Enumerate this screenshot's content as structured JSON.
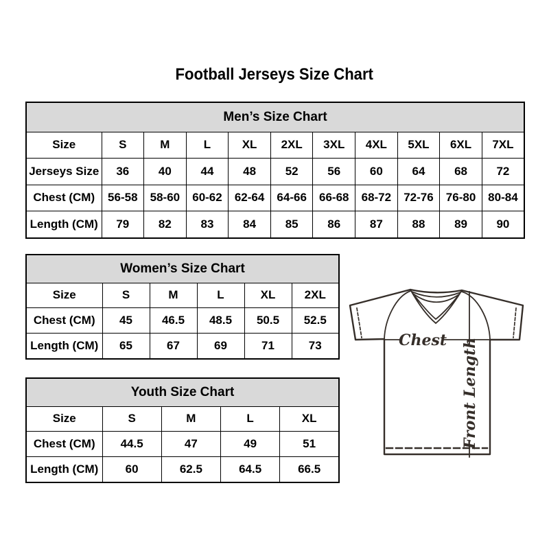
{
  "page": {
    "title": "Football Jerseys Size Chart"
  },
  "tables": {
    "men": {
      "title": "Men’s Size Chart",
      "rows": [
        [
          "Size",
          "S",
          "M",
          "L",
          "XL",
          "2XL",
          "3XL",
          "4XL",
          "5XL",
          "6XL",
          "7XL"
        ],
        [
          "Jerseys Size",
          "36",
          "40",
          "44",
          "48",
          "52",
          "56",
          "60",
          "64",
          "68",
          "72"
        ],
        [
          "Chest (CM)",
          "56-58",
          "58-60",
          "60-62",
          "62-64",
          "64-66",
          "66-68",
          "68-72",
          "72-76",
          "76-80",
          "80-84"
        ],
        [
          "Length (CM)",
          "79",
          "82",
          "83",
          "84",
          "85",
          "86",
          "87",
          "88",
          "89",
          "90"
        ]
      ]
    },
    "women": {
      "title": "Women’s Size Chart",
      "rows": [
        [
          "Size",
          "S",
          "M",
          "L",
          "XL",
          "2XL"
        ],
        [
          "Chest (CM)",
          "45",
          "46.5",
          "48.5",
          "50.5",
          "52.5"
        ],
        [
          "Length (CM)",
          "65",
          "67",
          "69",
          "71",
          "73"
        ]
      ]
    },
    "youth": {
      "title": "Youth Size Chart",
      "rows": [
        [
          "Size",
          "S",
          "M",
          "L",
          "XL"
        ],
        [
          "Chest (CM)",
          "44.5",
          "47",
          "49",
          "51"
        ],
        [
          "Length (CM)",
          "60",
          "62.5",
          "64.5",
          "66.5"
        ]
      ]
    }
  },
  "diagram": {
    "chest_label": "Chest",
    "front_length_label": "Front Length"
  },
  "colors": {
    "header_bg": "#d9d9d9",
    "border": "#000000",
    "diagram_stroke": "#352e29"
  }
}
